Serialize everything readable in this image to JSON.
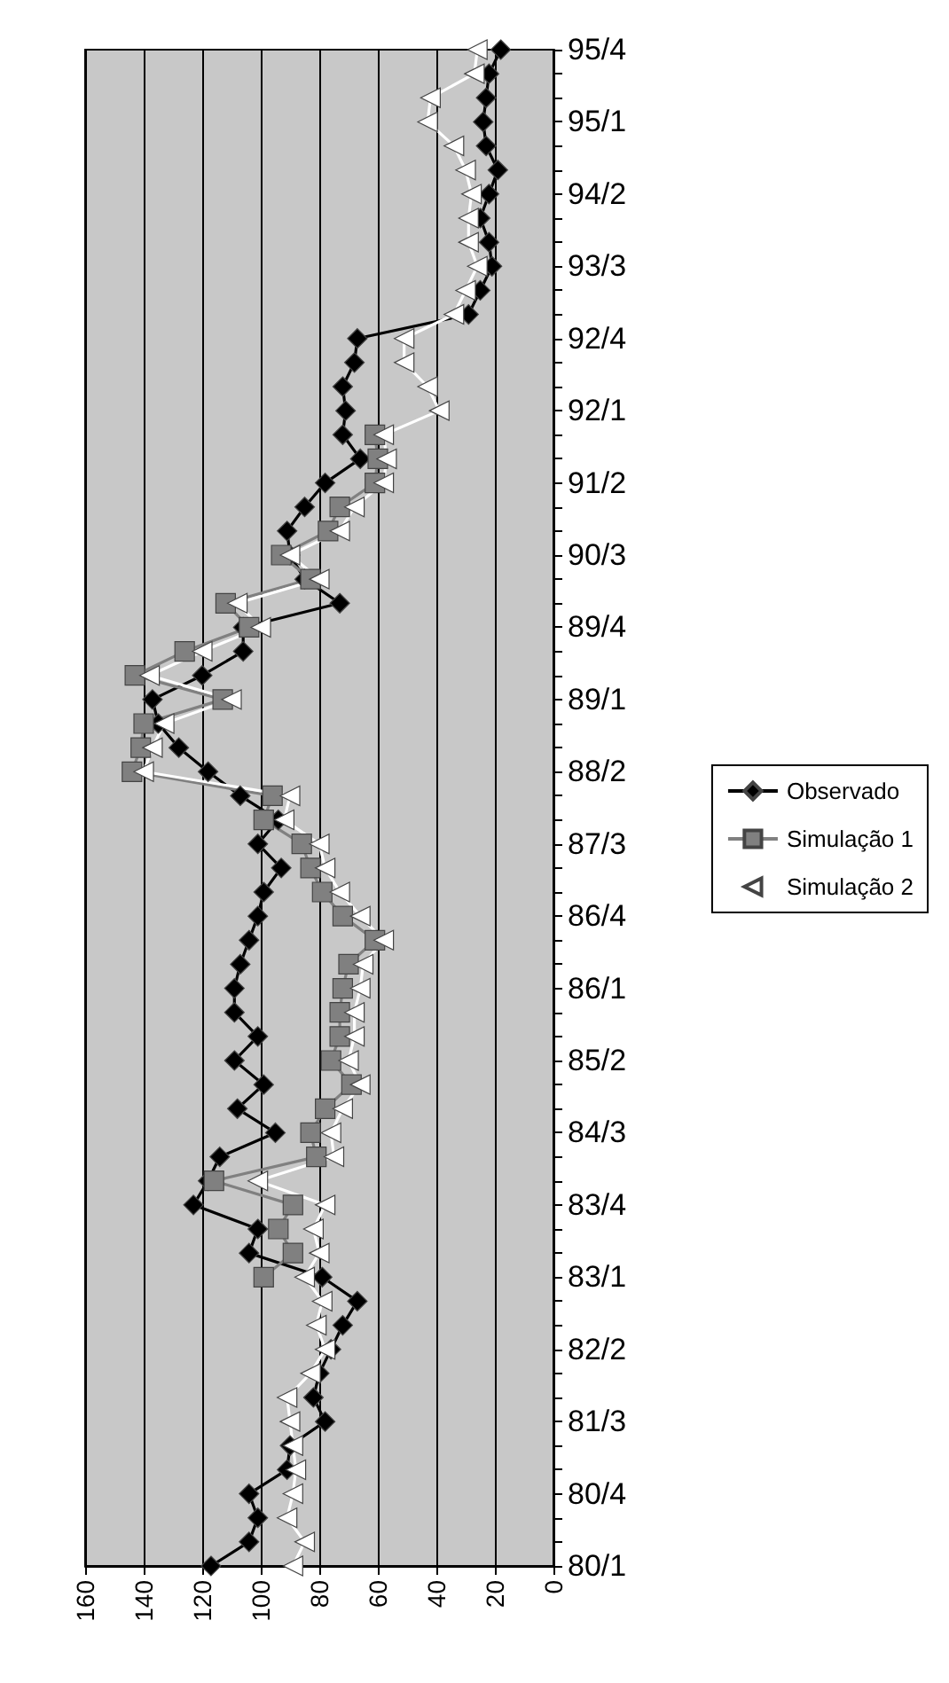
{
  "chart_data": {
    "type": "line",
    "orientation": "horizontal",
    "categories": [
      "95/4",
      null,
      null,
      "95/1",
      null,
      null,
      "94/2",
      null,
      null,
      "93/3",
      null,
      null,
      "92/4",
      null,
      null,
      "92/1",
      null,
      null,
      "91/2",
      null,
      null,
      "90/3",
      null,
      null,
      "89/4",
      null,
      null,
      "89/1",
      null,
      null,
      "88/2",
      null,
      null,
      "87/3",
      null,
      null,
      "86/4",
      null,
      null,
      "86/1",
      null,
      null,
      "85/2",
      null,
      null,
      "84/3",
      null,
      null,
      "83/4",
      null,
      null,
      "83/1",
      null,
      null,
      "82/2",
      null,
      null,
      "81/3",
      null,
      null,
      "80/4",
      null,
      null,
      "80/1"
    ],
    "series": [
      {
        "name": "Observado",
        "color": "#000000",
        "marker": "diamond",
        "values": [
          18,
          22,
          23,
          24,
          23,
          19,
          22,
          25,
          22,
          21,
          25,
          29,
          67,
          68,
          72,
          71,
          72,
          66,
          78,
          85,
          91,
          90,
          85,
          73,
          106,
          106,
          120,
          137,
          135,
          128,
          118,
          107,
          94,
          101,
          93,
          99,
          101,
          104,
          107,
          109,
          109,
          101,
          109,
          99,
          108,
          95,
          114,
          118,
          123,
          101,
          104,
          79,
          67,
          72,
          76,
          80,
          82,
          78,
          90,
          91,
          104,
          101,
          104,
          117
        ]
      },
      {
        "name": "Simulação 1",
        "color": "#808080",
        "marker": "square",
        "values": [
          null,
          null,
          null,
          null,
          null,
          null,
          null,
          null,
          null,
          null,
          null,
          null,
          null,
          null,
          null,
          null,
          61,
          60,
          61,
          73,
          77,
          93,
          83,
          112,
          104,
          126,
          143,
          113,
          140,
          141,
          144,
          96,
          99,
          86,
          83,
          79,
          72,
          61,
          70,
          72,
          73,
          73,
          76,
          69,
          78,
          83,
          81,
          116,
          89,
          94,
          89,
          99,
          null,
          null,
          null,
          null,
          null,
          null,
          null,
          null,
          null,
          null,
          null,
          null
        ]
      },
      {
        "name": "Simulação 2",
        "color": "#ffffff",
        "marker": "triangle",
        "values": [
          26,
          27,
          42,
          43,
          34,
          30,
          28,
          29,
          29,
          26,
          30,
          34,
          51,
          51,
          43,
          39,
          58,
          57,
          58,
          68,
          73,
          90,
          80,
          108,
          100,
          120,
          138,
          110,
          133,
          137,
          140,
          90,
          92,
          80,
          78,
          73,
          66,
          58,
          65,
          66,
          68,
          68,
          70,
          66,
          72,
          76,
          75,
          101,
          78,
          82,
          80,
          85,
          79,
          81,
          78,
          83,
          91,
          90,
          89,
          88,
          89,
          91,
          85,
          89
        ]
      }
    ],
    "xlim": [
      160,
      0
    ],
    "xticks": [
      160,
      140,
      120,
      100,
      80,
      60,
      40,
      20,
      0
    ],
    "grid": "x",
    "legend": "right"
  }
}
